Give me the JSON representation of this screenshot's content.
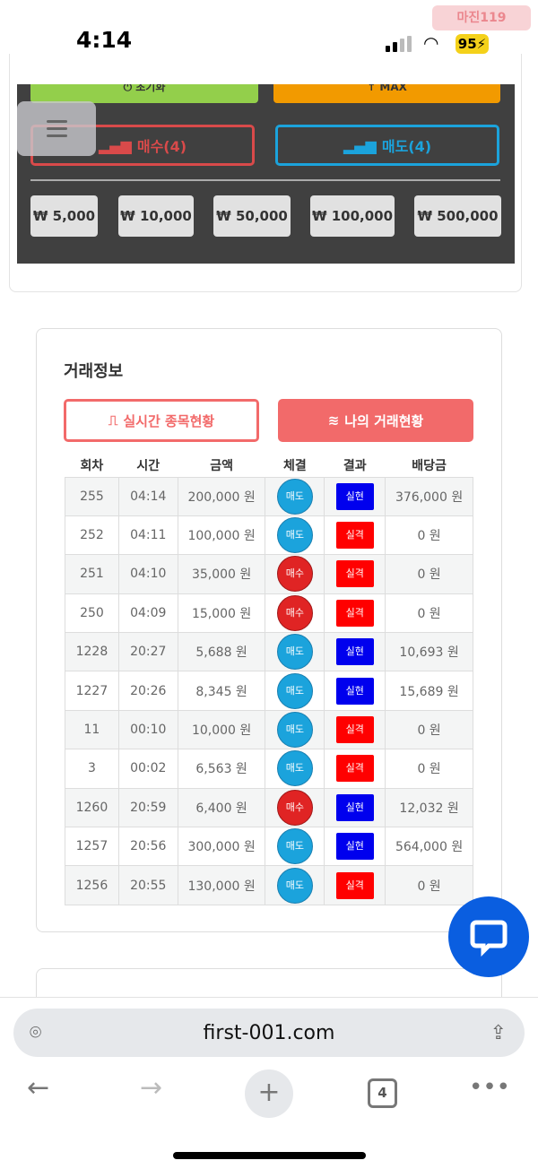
{
  "status": {
    "time": "4:14",
    "battery": "95",
    "watermark": "마진119"
  },
  "controls": {
    "reset_label": "⏻ 초기화",
    "max_label": "↑ MAX",
    "buy_label": "매수(4)",
    "sell_label": "매도(4)",
    "amounts": [
      "₩ 5,000",
      "₩ 10,000",
      "₩ 50,000",
      "₩ 100,000",
      "₩ 500,000"
    ]
  },
  "trade": {
    "title": "거래정보",
    "tab_realtime": "실시간 종목현황",
    "tab_mine": "나의 거래현황",
    "headers": [
      "회차",
      "시간",
      "금액",
      "체결",
      "결과",
      "배당금"
    ],
    "rows": [
      [
        "255",
        "04:14",
        "200,000 원",
        "매도",
        "실현",
        "376,000 원"
      ],
      [
        "252",
        "04:11",
        "100,000 원",
        "매도",
        "실격",
        "0 원"
      ],
      [
        "251",
        "04:10",
        "35,000 원",
        "매수",
        "실격",
        "0 원"
      ],
      [
        "250",
        "04:09",
        "15,000 원",
        "매수",
        "실격",
        "0 원"
      ],
      [
        "1228",
        "20:27",
        "5,688 원",
        "매도",
        "실현",
        "10,693 원"
      ],
      [
        "1227",
        "20:26",
        "8,345 원",
        "매도",
        "실현",
        "15,689 원"
      ],
      [
        "11",
        "00:10",
        "10,000 원",
        "매도",
        "실격",
        "0 원"
      ],
      [
        "3",
        "00:02",
        "6,563 원",
        "매도",
        "실격",
        "0 원"
      ],
      [
        "1260",
        "20:59",
        "6,400 원",
        "매수",
        "실현",
        "12,032 원"
      ],
      [
        "1257",
        "20:56",
        "300,000 원",
        "매도",
        "실현",
        "564,000 원"
      ],
      [
        "1256",
        "20:55",
        "130,000 원",
        "매도",
        "실격",
        "0 원"
      ]
    ]
  },
  "colors": {
    "buy": "#e02424",
    "sell": "#1ba3dc",
    "realized": "#0000ee",
    "failed": "#ff0000",
    "accent": "#f26a6a"
  },
  "browser": {
    "url": "first-001.com",
    "tab_count": "4"
  }
}
